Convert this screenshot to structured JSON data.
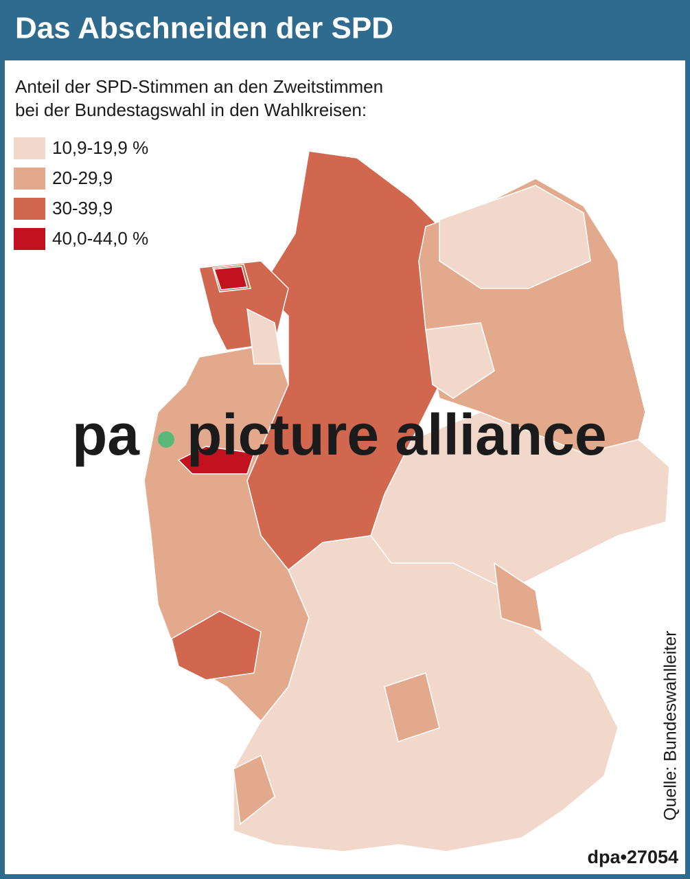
{
  "header": {
    "title": "Das Abschneiden der SPD"
  },
  "subtitle": [
    "Anteil der SPD-Stimmen an den Zweitstimmen",
    "bei der Bundestagswahl in den Wahlkreisen:"
  ],
  "legend": [
    {
      "label": "10,9-19,9 %",
      "color": "#f2d8ca"
    },
    {
      "label": "20-29,9",
      "color": "#e2a98d"
    },
    {
      "label": "30-39,9",
      "color": "#d0674e"
    },
    {
      "label": "40,0-44,0 %",
      "color": "#c3121f"
    }
  ],
  "watermark": {
    "left": "pa",
    "right": "picture alliance"
  },
  "source": "Quelle: Bundeswahlleiter",
  "credit": "dpa•27054"
}
